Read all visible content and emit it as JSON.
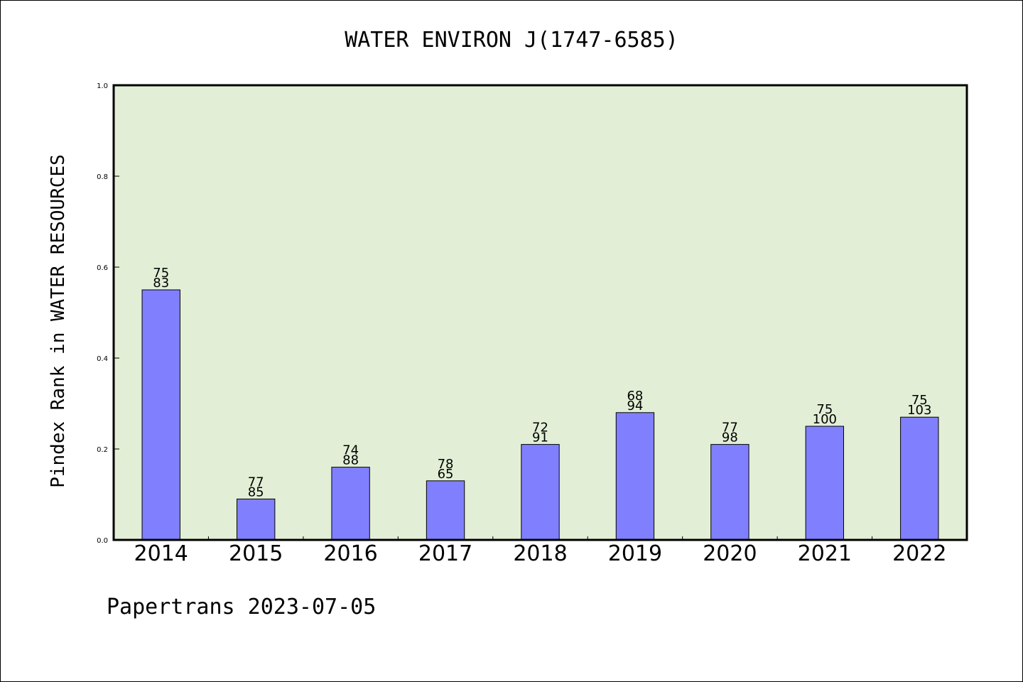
{
  "chart_data": {
    "type": "bar",
    "title": "WATER ENVIRON J(1747-6585)",
    "xlabel": "",
    "ylabel": "Pindex Rank in WATER RESOURCES",
    "categories": [
      "2014",
      "2015",
      "2016",
      "2017",
      "2018",
      "2019",
      "2020",
      "2021",
      "2022"
    ],
    "values": [
      0.55,
      0.09,
      0.16,
      0.13,
      0.21,
      0.28,
      0.21,
      0.25,
      0.27
    ],
    "labels_top": [
      "75",
      "77",
      "74",
      "78",
      "72",
      "68",
      "77",
      "75",
      "75"
    ],
    "labels_bottom": [
      "83",
      "85",
      "88",
      "65",
      "91",
      "94",
      "98",
      "100",
      "103"
    ],
    "ylim": [
      0,
      1.0
    ],
    "yticks": [
      "0.0",
      "0.2",
      "0.4",
      "0.6",
      "0.8",
      "1.0"
    ],
    "grid": false,
    "colors": {
      "plot_background": "#e2efd6",
      "bar": "#8080ff",
      "bar_edge": "#000000"
    }
  },
  "footer": "Papertrans 2023-07-05"
}
